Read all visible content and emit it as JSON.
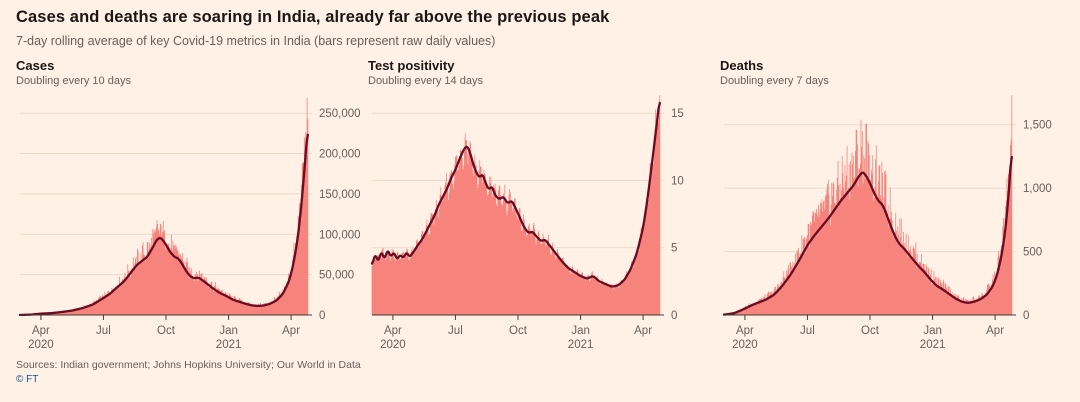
{
  "page": {
    "title": "Cases and deaths are soaring in India, already far above the previous peak",
    "subtitle": "7-day rolling average of key Covid-19 metrics in India (bars represent raw daily values)",
    "source": "Sources: Indian government; Johns Hopkins University; Our World in Data",
    "copyright": "© FT"
  },
  "colors": {
    "background": "#fff1e5",
    "bar": "#f6837c",
    "line": "#6b0c23",
    "grid": "#e9dccb",
    "axis": "#66605c",
    "axis_text": "#66605c",
    "title_text": "#1a1817"
  },
  "chart_data": [
    {
      "type": "area",
      "name": "cases",
      "title": "Cases",
      "subtitle": "Doubling every 10 days",
      "note": "bars show raw daily values; line shows 7-day rolling average",
      "seed": 1,
      "noise": 0.32,
      "xlim": [
        0,
        14
      ],
      "ylim": [
        0,
        275000
      ],
      "y_ticks": [
        0,
        50000,
        100000,
        150000,
        200000,
        250000
      ],
      "y_tick_labels": [
        "0",
        "50,000",
        "100,000",
        "150,000",
        "200,000",
        "250,000"
      ],
      "x_ticks": [
        {
          "m": 1,
          "lines": [
            "Apr",
            "2020"
          ]
        },
        {
          "m": 4,
          "lines": [
            "Jul"
          ]
        },
        {
          "m": 7,
          "lines": [
            "Oct"
          ]
        },
        {
          "m": 10,
          "lines": [
            "Jan",
            "2021"
          ]
        },
        {
          "m": 13,
          "lines": [
            "Apr"
          ]
        }
      ],
      "points": [
        [
          0.0,
          80
        ],
        [
          0.5,
          400
        ],
        [
          1.0,
          1700
        ],
        [
          1.5,
          2300
        ],
        [
          2.0,
          3700
        ],
        [
          2.5,
          5500
        ],
        [
          3.0,
          8500
        ],
        [
          3.5,
          13000
        ],
        [
          4.0,
          21000
        ],
        [
          4.3,
          26000
        ],
        [
          4.6,
          33000
        ],
        [
          5.0,
          42000
        ],
        [
          5.3,
          52000
        ],
        [
          5.6,
          62000
        ],
        [
          5.9,
          68000
        ],
        [
          6.1,
          72000
        ],
        [
          6.35,
          83000
        ],
        [
          6.55,
          93000
        ],
        [
          6.7,
          96000
        ],
        [
          6.85,
          93000
        ],
        [
          7.0,
          87000
        ],
        [
          7.2,
          78000
        ],
        [
          7.4,
          72000
        ],
        [
          7.6,
          70000
        ],
        [
          7.8,
          62000
        ],
        [
          8.0,
          53000
        ],
        [
          8.2,
          47000
        ],
        [
          8.4,
          45500
        ],
        [
          8.55,
          46500
        ],
        [
          8.7,
          44000
        ],
        [
          9.0,
          38000
        ],
        [
          9.3,
          32000
        ],
        [
          9.6,
          27000
        ],
        [
          9.9,
          23500
        ],
        [
          10.2,
          19000
        ],
        [
          10.5,
          16500
        ],
        [
          10.8,
          14000
        ],
        [
          11.1,
          12000
        ],
        [
          11.4,
          11200
        ],
        [
          11.7,
          11800
        ],
        [
          12.0,
          14000
        ],
        [
          12.3,
          18000
        ],
        [
          12.6,
          26000
        ],
        [
          12.9,
          42000
        ],
        [
          13.1,
          62000
        ],
        [
          13.3,
          92000
        ],
        [
          13.45,
          125000
        ],
        [
          13.6,
          168000
        ],
        [
          13.7,
          200000
        ],
        [
          13.8,
          235000
        ]
      ]
    },
    {
      "type": "area",
      "name": "test-positivity",
      "title": "Test positivity",
      "subtitle": "Doubling every 14 days",
      "note": "bars show raw daily values; line shows 7-day rolling average",
      "seed": 2,
      "noise": 0.12,
      "xlim": [
        0,
        14
      ],
      "ylim": [
        0,
        16.5
      ],
      "y_ticks": [
        0,
        5,
        10,
        15
      ],
      "y_tick_labels": [
        "0",
        "5",
        "10",
        "15"
      ],
      "x_ticks": [
        {
          "m": 1,
          "lines": [
            "Apr",
            "2020"
          ]
        },
        {
          "m": 4,
          "lines": [
            "Jul"
          ]
        },
        {
          "m": 7,
          "lines": [
            "Oct"
          ]
        },
        {
          "m": 10,
          "lines": [
            "Jan",
            "2021"
          ]
        },
        {
          "m": 13,
          "lines": [
            "Apr"
          ]
        }
      ],
      "points": [
        [
          0.0,
          3.6
        ],
        [
          0.15,
          4.6
        ],
        [
          0.3,
          3.9
        ],
        [
          0.45,
          4.8
        ],
        [
          0.6,
          4.1
        ],
        [
          0.75,
          4.9
        ],
        [
          0.9,
          4.3
        ],
        [
          1.05,
          4.7
        ],
        [
          1.2,
          4.1
        ],
        [
          1.35,
          4.5
        ],
        [
          1.5,
          4.2
        ],
        [
          1.65,
          4.7
        ],
        [
          1.8,
          4.3
        ],
        [
          2.0,
          4.7
        ],
        [
          2.2,
          5.2
        ],
        [
          2.4,
          5.6
        ],
        [
          2.6,
          6.2
        ],
        [
          2.8,
          6.8
        ],
        [
          3.0,
          7.4
        ],
        [
          3.2,
          8.2
        ],
        [
          3.4,
          8.8
        ],
        [
          3.6,
          9.4
        ],
        [
          3.8,
          10.2
        ],
        [
          4.0,
          10.8
        ],
        [
          4.2,
          11.6
        ],
        [
          4.4,
          12.3
        ],
        [
          4.55,
          12.6
        ],
        [
          4.7,
          12.1
        ],
        [
          4.85,
          11.2
        ],
        [
          5.0,
          10.6
        ],
        [
          5.15,
          10.2
        ],
        [
          5.3,
          10.5
        ],
        [
          5.45,
          9.8
        ],
        [
          5.6,
          9.3
        ],
        [
          5.75,
          9.6
        ],
        [
          5.9,
          8.9
        ],
        [
          6.1,
          8.6
        ],
        [
          6.3,
          8.8
        ],
        [
          6.5,
          8.3
        ],
        [
          6.7,
          8.5
        ],
        [
          6.9,
          7.9
        ],
        [
          7.1,
          7.2
        ],
        [
          7.3,
          6.5
        ],
        [
          7.5,
          6.1
        ],
        [
          7.7,
          6.2
        ],
        [
          7.9,
          5.8
        ],
        [
          8.1,
          5.5
        ],
        [
          8.3,
          5.6
        ],
        [
          8.5,
          5.2
        ],
        [
          8.8,
          4.6
        ],
        [
          9.1,
          4.0
        ],
        [
          9.4,
          3.5
        ],
        [
          9.7,
          3.2
        ],
        [
          10.0,
          2.9
        ],
        [
          10.3,
          2.7
        ],
        [
          10.6,
          2.9
        ],
        [
          10.9,
          2.5
        ],
        [
          11.2,
          2.3
        ],
        [
          11.5,
          2.1
        ],
        [
          11.8,
          2.2
        ],
        [
          12.1,
          2.6
        ],
        [
          12.4,
          3.4
        ],
        [
          12.7,
          4.6
        ],
        [
          13.0,
          6.5
        ],
        [
          13.2,
          8.5
        ],
        [
          13.4,
          11.0
        ],
        [
          13.6,
          13.5
        ],
        [
          13.8,
          16.2
        ]
      ]
    },
    {
      "type": "area",
      "name": "deaths",
      "title": "Deaths",
      "subtitle": "Doubling every 7 days",
      "note": "bars show raw daily values; line shows 7-day rolling average",
      "seed": 3,
      "noise": 0.42,
      "xlim": [
        0,
        14
      ],
      "ylim": [
        0,
        1750
      ],
      "y_ticks": [
        0,
        500,
        1000,
        1500
      ],
      "y_tick_labels": [
        "0",
        "500",
        "1,000",
        "1,500"
      ],
      "x_ticks": [
        {
          "m": 1,
          "lines": [
            "Apr",
            "2020"
          ]
        },
        {
          "m": 4,
          "lines": [
            "Jul"
          ]
        },
        {
          "m": 7,
          "lines": [
            "Oct"
          ]
        },
        {
          "m": 10,
          "lines": [
            "Jan",
            "2021"
          ]
        },
        {
          "m": 13,
          "lines": [
            "Apr"
          ]
        }
      ],
      "points": [
        [
          0.0,
          2
        ],
        [
          0.5,
          15
        ],
        [
          1.0,
          50
        ],
        [
          1.3,
          75
        ],
        [
          1.6,
          95
        ],
        [
          2.0,
          120
        ],
        [
          2.4,
          160
        ],
        [
          2.8,
          230
        ],
        [
          3.2,
          320
        ],
        [
          3.6,
          430
        ],
        [
          4.0,
          550
        ],
        [
          4.3,
          620
        ],
        [
          4.6,
          680
        ],
        [
          5.0,
          760
        ],
        [
          5.3,
          830
        ],
        [
          5.6,
          900
        ],
        [
          5.9,
          960
        ],
        [
          6.2,
          1020
        ],
        [
          6.45,
          1090
        ],
        [
          6.65,
          1130
        ],
        [
          6.8,
          1100
        ],
        [
          7.0,
          1040
        ],
        [
          7.2,
          960
        ],
        [
          7.4,
          900
        ],
        [
          7.6,
          870
        ],
        [
          7.8,
          790
        ],
        [
          8.0,
          700
        ],
        [
          8.2,
          620
        ],
        [
          8.4,
          560
        ],
        [
          8.6,
          530
        ],
        [
          8.8,
          490
        ],
        [
          9.0,
          450
        ],
        [
          9.3,
          390
        ],
        [
          9.6,
          340
        ],
        [
          9.9,
          280
        ],
        [
          10.2,
          230
        ],
        [
          10.5,
          200
        ],
        [
          10.8,
          165
        ],
        [
          11.1,
          130
        ],
        [
          11.4,
          105
        ],
        [
          11.7,
          95
        ],
        [
          12.0,
          105
        ],
        [
          12.3,
          125
        ],
        [
          12.6,
          160
        ],
        [
          12.9,
          230
        ],
        [
          13.1,
          320
        ],
        [
          13.3,
          460
        ],
        [
          13.5,
          680
        ],
        [
          13.65,
          950
        ],
        [
          13.8,
          1330
        ]
      ]
    }
  ]
}
